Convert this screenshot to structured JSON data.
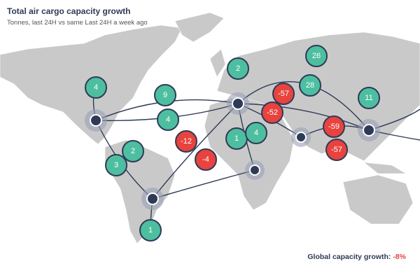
{
  "header": {
    "title": "Total air cargo capacity growth",
    "subtitle": "Tonnes, last 24H vs same Last 24H a week ago"
  },
  "badges": [
    {
      "label": "4",
      "color": "#4dbfa0"
    },
    {
      "label": "9",
      "color": "#4dbfa0"
    },
    {
      "label": "4",
      "color": "#4dbfa0"
    },
    {
      "label": "2",
      "color": "#4dbfa0"
    },
    {
      "label": "-57",
      "color": "#e8433e"
    },
    {
      "label": "28",
      "color": "#4dbfa0"
    },
    {
      "label": "26",
      "color": "#4dbfa0"
    },
    {
      "label": "11",
      "color": "#4dbfa0"
    },
    {
      "label": "-52",
      "color": "#e8433e"
    },
    {
      "label": "1",
      "color": "#4dbfa0"
    },
    {
      "label": "4",
      "color": "#4dbfa0"
    },
    {
      "label": "-12",
      "color": "#e8433e"
    },
    {
      "label": "-4",
      "color": "#e8433e"
    },
    {
      "label": "-59",
      "color": "#e8433e"
    },
    {
      "label": "-57",
      "color": "#e8433e"
    },
    {
      "label": "2",
      "color": "#4dbfa0"
    },
    {
      "label": "3",
      "color": "#4dbfa0"
    },
    {
      "label": "1",
      "color": "#4dbfa0"
    }
  ],
  "footer": {
    "label": "Global capacity growth:",
    "value": "-8%",
    "value_color": "#e8433e"
  }
}
